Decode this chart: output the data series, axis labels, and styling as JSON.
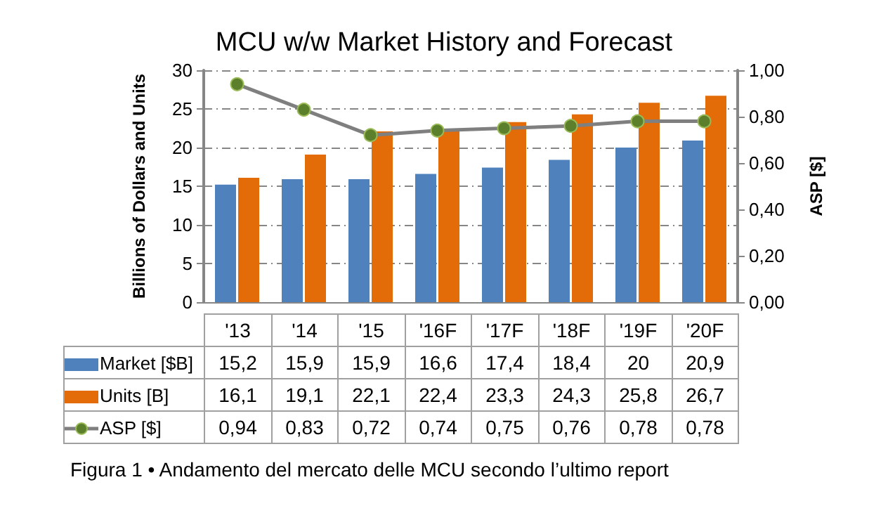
{
  "chart_data": {
    "type": "bar",
    "title": "MCU w/w Market History and Forecast",
    "categories": [
      "'13",
      "'14",
      "'15",
      "'16F",
      "'17F",
      "'18F",
      "'19F",
      "'20F"
    ],
    "series": [
      {
        "name": "Market [$B]",
        "color": "#4f81bd",
        "values": [
          15.2,
          15.9,
          15.9,
          16.6,
          17.4,
          18.4,
          20,
          20.9
        ],
        "value_labels": [
          "15,2",
          "15,9",
          "15,9",
          "16,6",
          "17,4",
          "18,4",
          "20",
          "20,9"
        ]
      },
      {
        "name": "Units [B]",
        "color": "#e36c09",
        "values": [
          16.1,
          19.1,
          22.1,
          22.4,
          23.3,
          24.3,
          25.8,
          26.7
        ],
        "value_labels": [
          "16,1",
          "19,1",
          "22,1",
          "22,4",
          "23,3",
          "24,3",
          "25,8",
          "26,7"
        ]
      },
      {
        "name": "ASP [$]",
        "type": "line",
        "axis": "y2",
        "color": "#7f7f7f",
        "marker": "circle",
        "values": [
          0.94,
          0.83,
          0.72,
          0.74,
          0.75,
          0.76,
          0.78,
          0.78
        ],
        "value_labels": [
          "0,94",
          "0,83",
          "0,72",
          "0,74",
          "0,75",
          "0,76",
          "0,78",
          "0,78"
        ]
      }
    ],
    "ylabel": "Billions of Dollars and Units",
    "y2label": "ASP [$]",
    "ylim": [
      0,
      30
    ],
    "yticks": [
      0,
      5,
      10,
      15,
      20,
      25,
      30
    ],
    "y2lim": [
      0,
      1
    ],
    "y2ticks": [
      {
        "value": 0,
        "label": "0,00"
      },
      {
        "value": 0.2,
        "label": "0,20"
      },
      {
        "value": 0.4,
        "label": "0,40"
      },
      {
        "value": 0.6,
        "label": "0,60"
      },
      {
        "value": 0.8,
        "label": "0,80"
      },
      {
        "value": 1,
        "label": "1,00"
      }
    ],
    "grid": "y",
    "legend": "bottom",
    "annotations": [
      "Figura 1 • Andamento del mercato delle MCU secondo l’ultimo report"
    ]
  }
}
